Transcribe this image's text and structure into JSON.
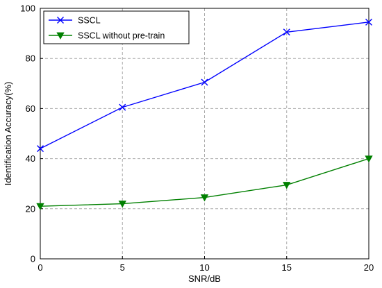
{
  "chart_data": {
    "type": "line",
    "title": "",
    "xlabel": "SNR/dB",
    "ylabel": "Identification Accuracy(%)",
    "x": [
      0,
      5,
      10,
      15,
      20
    ],
    "xticks": [
      "0",
      "5",
      "10",
      "15",
      "20"
    ],
    "yticks": [
      "0",
      "20",
      "40",
      "60",
      "80",
      "100"
    ],
    "xlim": [
      0,
      20
    ],
    "ylim": [
      0,
      100
    ],
    "grid": true,
    "legend_position": "top-left",
    "series": [
      {
        "name": "SSCL",
        "color": "#0000ff",
        "marker": "x",
        "values": [
          44,
          60.5,
          70.5,
          90.5,
          94.5
        ]
      },
      {
        "name": "SSCL without pre-train",
        "color": "#008000",
        "marker": "triangle-down",
        "values": [
          21,
          22,
          24.5,
          29.5,
          40
        ]
      }
    ]
  }
}
